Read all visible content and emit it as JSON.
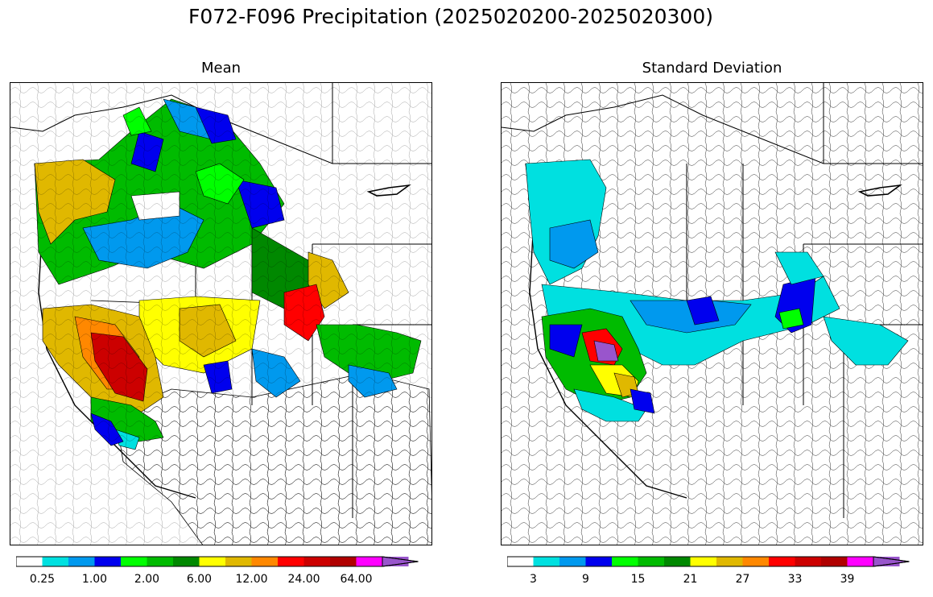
{
  "figure": {
    "title": "F072-F096 Precipitation (2025020200-2025020300)"
  },
  "panels": [
    {
      "title": "Mean",
      "colorbar": {
        "colors": [
          "#ffffff",
          "#00e0e0",
          "#0099ee",
          "#0000ee",
          "#00ff00",
          "#00bb00",
          "#008800",
          "#ffff00",
          "#e0b800",
          "#ff8800",
          "#ff0000",
          "#cc0000",
          "#b00000",
          "#ff00ff",
          "#9955cc"
        ],
        "tick_labels": [
          "0.25",
          "1.00",
          "2.00",
          "6.00",
          "12.00",
          "24.00",
          "64.00"
        ],
        "extend": "max"
      }
    },
    {
      "title": "Standard Deviation",
      "colorbar": {
        "colors": [
          "#ffffff",
          "#00e0e0",
          "#0099ee",
          "#0000ee",
          "#00ff00",
          "#00bb00",
          "#008800",
          "#ffff00",
          "#e0b800",
          "#ff8800",
          "#ff0000",
          "#cc0000",
          "#b00000",
          "#ff00ff",
          "#9955cc"
        ],
        "tick_labels": [
          "3",
          "9",
          "15",
          "21",
          "27",
          "33",
          "39"
        ],
        "extend": "max"
      }
    }
  ]
}
